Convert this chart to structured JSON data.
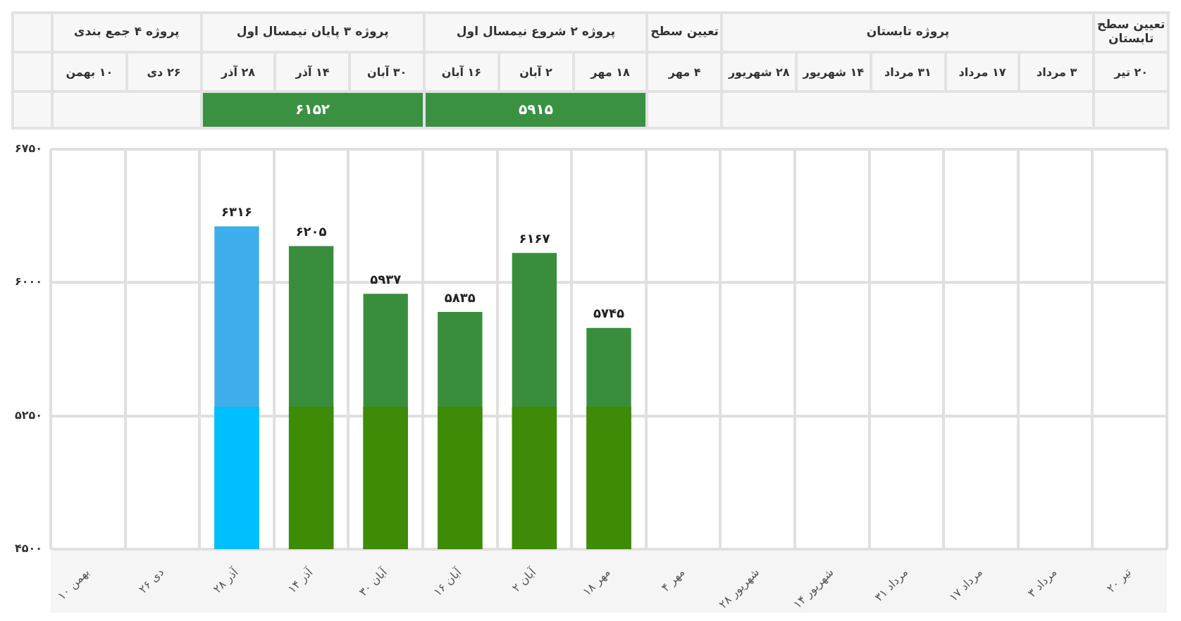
{
  "chart_data": {
    "type": "bar",
    "grid": true,
    "legend": false,
    "categories": [
      "۱۰ بهمن",
      "۲۶ دی",
      "۲۸ آذر",
      "۱۴ آذر",
      "۳۰ آبان",
      "۱۶ آبان",
      "۲ آبان",
      "۱۸ مهر",
      "۴ مهر",
      "۲۸ شهریور",
      "۱۴ شهریور",
      "۳۱ مرداد",
      "۱۷ مرداد",
      "۳ مرداد",
      "۲۰ تیر"
    ],
    "series": [
      {
        "colors": [
          "#00bfff",
          "#00bfff",
          "#00bfff",
          "#3d8b06",
          "#3d8b06",
          "#3d8b06",
          "#3d8b06",
          "#3d8b06",
          "#3d8b06",
          "#3d8b06",
          "#3d8b06",
          "#3d8b06",
          "#3d8b06",
          "#3d8b06",
          "#3d8b06"
        ],
        "values": [
          null,
          null,
          5300,
          5300,
          5300,
          5300,
          5300,
          5300,
          null,
          null,
          null,
          null,
          null,
          null,
          null
        ]
      },
      {
        "colors": [
          "#3daee9",
          "#3daee9",
          "#3daee9",
          "#388e3c",
          "#388e3c",
          "#388e3c",
          "#388e3c",
          "#388e3c",
          "#388e3c",
          "#388e3c",
          "#388e3c",
          "#388e3c",
          "#388e3c",
          "#388e3c",
          "#388e3c"
        ],
        "values": [
          null,
          null,
          6316,
          6205,
          5937,
          5835,
          6167,
          5745,
          null,
          null,
          null,
          null,
          null,
          null,
          null
        ],
        "value_labels": [
          null,
          null,
          "۶۳۱۶",
          "۶۲۰۵",
          "۵۹۳۷",
          "۵۸۳۵",
          "۶۱۶۷",
          "۵۷۴۵",
          null,
          null,
          null,
          null,
          null,
          null,
          null
        ]
      }
    ],
    "ylim": [
      4500,
      6750
    ],
    "yticks": [
      {
        "value": 4500,
        "label": "۴۵۰۰"
      },
      {
        "value": 5250,
        "label": "۵۲۵۰"
      },
      {
        "value": 6000,
        "label": "۶۰۰۰"
      },
      {
        "value": 6750,
        "label": "۶۷۵۰"
      }
    ],
    "annotations": [
      "پروژه ۴ جمع بندی",
      "پروژه ۳ پایان نیمسال اول",
      "پروژه ۲ شروع نیمسال اول",
      "تعیین سطح",
      "پروژه تابستان",
      "تعیین سطح تابستان",
      "۶۱۵۲",
      "۵۹۱۵"
    ]
  }
}
